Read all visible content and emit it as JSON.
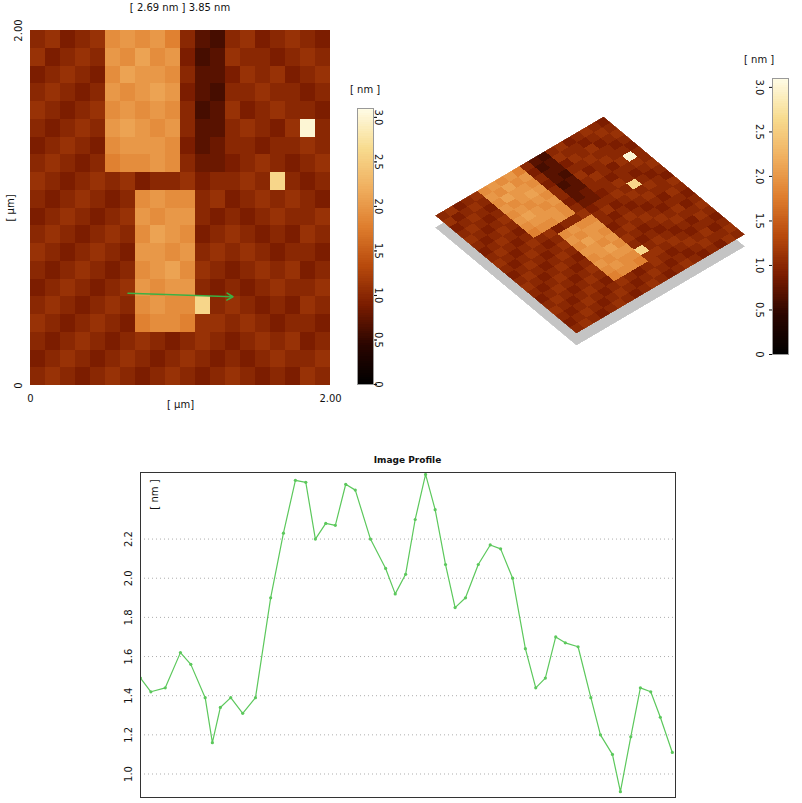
{
  "chart_data": [
    {
      "type": "heatmap",
      "title": "[ 2.69 nm ] 3.85 nm",
      "x_label": "[ µm]",
      "y_label": "[ µm]",
      "xlim": [
        0,
        2
      ],
      "ylim": [
        0,
        2
      ],
      "xticks": [
        0,
        {
          "value": 2,
          "label": "2.00"
        }
      ],
      "yticks": [
        0,
        {
          "value": 2,
          "label": "2.00"
        }
      ],
      "values": [
        [
          1.0,
          1.1,
          0.9,
          1.0,
          1.1,
          1.9,
          2.0,
          1.9,
          2.0,
          1.8,
          1.0,
          0.7,
          0.6,
          1.0,
          1.1,
          0.9,
          1.0,
          1.1,
          1.0,
          0.9
        ],
        [
          1.1,
          0.9,
          1.0,
          1.1,
          1.0,
          2.0,
          1.9,
          2.1,
          1.9,
          2.0,
          0.9,
          0.6,
          0.7,
          1.1,
          1.0,
          1.0,
          0.9,
          1.0,
          1.1,
          1.0
        ],
        [
          0.9,
          1.0,
          1.1,
          1.0,
          0.9,
          1.9,
          2.1,
          2.0,
          2.0,
          1.9,
          1.0,
          0.7,
          0.7,
          0.9,
          1.1,
          1.0,
          1.1,
          0.9,
          1.0,
          1.1
        ],
        [
          1.0,
          1.1,
          1.0,
          0.9,
          1.0,
          2.0,
          1.9,
          2.0,
          2.1,
          2.0,
          0.9,
          0.7,
          0.6,
          1.0,
          1.0,
          1.1,
          1.0,
          1.0,
          0.9,
          1.0
        ],
        [
          1.1,
          1.0,
          0.9,
          1.0,
          1.1,
          1.9,
          2.0,
          1.9,
          2.0,
          1.9,
          1.0,
          0.6,
          0.7,
          1.1,
          0.9,
          1.0,
          1.1,
          1.0,
          1.0,
          0.9
        ],
        [
          1.0,
          0.9,
          1.0,
          1.1,
          1.0,
          2.0,
          2.1,
          2.0,
          1.9,
          2.0,
          1.0,
          0.7,
          0.7,
          1.0,
          1.1,
          1.0,
          0.9,
          1.1,
          3.0,
          1.0
        ],
        [
          0.9,
          1.0,
          1.1,
          1.0,
          0.9,
          1.9,
          2.0,
          2.0,
          2.0,
          1.9,
          0.9,
          0.7,
          0.8,
          1.0,
          1.0,
          0.9,
          1.0,
          1.0,
          1.1,
          1.0
        ],
        [
          1.0,
          1.1,
          1.0,
          0.9,
          1.0,
          1.8,
          1.9,
          1.9,
          2.0,
          1.9,
          1.0,
          0.8,
          0.8,
          0.9,
          1.0,
          1.1,
          1.0,
          0.9,
          1.0,
          1.1
        ],
        [
          1.1,
          1.0,
          0.9,
          1.0,
          1.1,
          1.0,
          1.1,
          0.9,
          1.0,
          1.0,
          1.1,
          0.9,
          1.0,
          1.0,
          1.1,
          1.0,
          2.6,
          1.0,
          0.9,
          1.0
        ],
        [
          1.0,
          0.9,
          1.0,
          1.1,
          1.0,
          0.9,
          1.0,
          1.9,
          2.0,
          1.9,
          1.9,
          1.0,
          1.1,
          0.9,
          1.0,
          1.1,
          1.0,
          1.1,
          1.0,
          0.9
        ],
        [
          0.9,
          1.0,
          1.1,
          1.0,
          0.9,
          1.0,
          1.1,
          2.0,
          1.9,
          2.0,
          2.0,
          1.0,
          0.9,
          1.0,
          0.9,
          1.0,
          1.1,
          1.0,
          1.0,
          1.1
        ],
        [
          1.0,
          1.1,
          1.0,
          0.9,
          1.0,
          1.1,
          1.0,
          1.9,
          2.1,
          2.0,
          1.9,
          0.9,
          1.0,
          1.1,
          1.0,
          0.9,
          1.0,
          0.9,
          1.1,
          1.0
        ],
        [
          1.1,
          1.0,
          0.9,
          1.0,
          1.1,
          1.0,
          0.9,
          2.0,
          2.0,
          1.9,
          2.0,
          1.0,
          1.1,
          1.0,
          1.1,
          1.0,
          0.9,
          1.0,
          1.0,
          0.9
        ],
        [
          1.0,
          0.9,
          1.0,
          1.1,
          1.0,
          0.9,
          1.0,
          1.9,
          2.0,
          2.1,
          1.9,
          1.1,
          1.0,
          0.9,
          1.0,
          1.1,
          1.0,
          1.1,
          0.9,
          1.0
        ],
        [
          0.9,
          1.0,
          1.1,
          1.0,
          0.9,
          1.0,
          1.1,
          2.0,
          1.9,
          2.0,
          2.0,
          1.0,
          0.9,
          1.0,
          0.9,
          1.0,
          1.1,
          1.0,
          1.0,
          1.1
        ],
        [
          1.0,
          1.1,
          1.0,
          0.9,
          1.0,
          1.1,
          1.0,
          1.9,
          2.0,
          1.9,
          1.9,
          2.6,
          1.0,
          1.1,
          1.0,
          0.9,
          1.0,
          0.9,
          1.1,
          1.0
        ],
        [
          1.1,
          1.0,
          0.9,
          1.0,
          1.1,
          1.0,
          0.9,
          1.8,
          1.9,
          1.9,
          1.8,
          1.1,
          1.1,
          1.0,
          1.1,
          1.0,
          0.9,
          1.0,
          1.0,
          0.9
        ],
        [
          1.0,
          0.9,
          1.0,
          1.1,
          1.0,
          0.9,
          1.0,
          1.1,
          1.0,
          0.9,
          1.0,
          1.1,
          1.0,
          0.9,
          1.0,
          1.1,
          1.0,
          1.1,
          0.9,
          1.0
        ],
        [
          0.9,
          1.0,
          1.1,
          1.0,
          0.9,
          1.0,
          1.1,
          1.0,
          0.9,
          1.0,
          1.1,
          1.0,
          0.9,
          1.0,
          0.9,
          1.0,
          1.1,
          1.0,
          1.0,
          1.1
        ],
        [
          1.0,
          1.1,
          1.0,
          0.9,
          1.0,
          1.1,
          1.0,
          0.9,
          1.0,
          1.1,
          1.0,
          0.9,
          1.0,
          1.1,
          1.0,
          0.9,
          1.0,
          0.9,
          1.1,
          1.0
        ]
      ],
      "profile_line": {
        "x": [
          0.65,
          1.35
        ],
        "y": [
          0.52,
          0.5
        ],
        "color": "#3cb043"
      },
      "colorbar": {
        "label": "[ nm ]",
        "range": [
          0,
          3.1
        ],
        "ticks": [
          0,
          0.5,
          {
            "value": 1,
            "label": "1.0"
          },
          1.5,
          {
            "value": 2,
            "label": "2.0"
          },
          2.5,
          {
            "value": 3,
            "label": "3.0"
          }
        ]
      }
    },
    {
      "type": "line",
      "title": "Image Profile",
      "y_label": "[ nm ]",
      "x": [
        0,
        0.013,
        0.031,
        0.05,
        0.063,
        0.081,
        0.09,
        0.1,
        0.113,
        0.128,
        0.144,
        0.163,
        0.179,
        0.194,
        0.207,
        0.219,
        0.232,
        0.244,
        0.257,
        0.269,
        0.288,
        0.307,
        0.319,
        0.332,
        0.344,
        0.357,
        0.369,
        0.382,
        0.394,
        0.407,
        0.423,
        0.438,
        0.451,
        0.466,
        0.482,
        0.495,
        0.507,
        0.52,
        0.532,
        0.548,
        0.564,
        0.576,
        0.591,
        0.601,
        0.614,
        0.626,
        0.639,
        0.651,
        0.666
      ],
      "values": [
        1.49,
        1.42,
        1.44,
        1.62,
        1.56,
        1.39,
        1.16,
        1.34,
        1.39,
        1.31,
        1.39,
        1.9,
        2.23,
        2.5,
        2.49,
        2.2,
        2.28,
        2.27,
        2.48,
        2.45,
        2.2,
        2.05,
        1.92,
        2.02,
        2.3,
        2.53,
        2.35,
        2.07,
        1.85,
        1.9,
        2.07,
        2.17,
        2.15,
        2.0,
        1.64,
        1.44,
        1.49,
        1.7,
        1.67,
        1.65,
        1.39,
        1.2,
        1.1,
        0.91,
        1.19,
        1.44,
        1.42,
        1.29,
        1.11
      ],
      "color": "#5cc85c",
      "marker": "dot",
      "line_style": "solid",
      "xlim": [
        0,
        0.67
      ],
      "ylim": [
        0.88,
        2.54
      ],
      "yticks": [
        {
          "value": 1,
          "label": "1.0"
        },
        1.2,
        1.4,
        1.6,
        1.8,
        {
          "value": 2,
          "label": "2.0"
        },
        2.2
      ],
      "grid": true,
      "tick_labels": "y"
    }
  ]
}
